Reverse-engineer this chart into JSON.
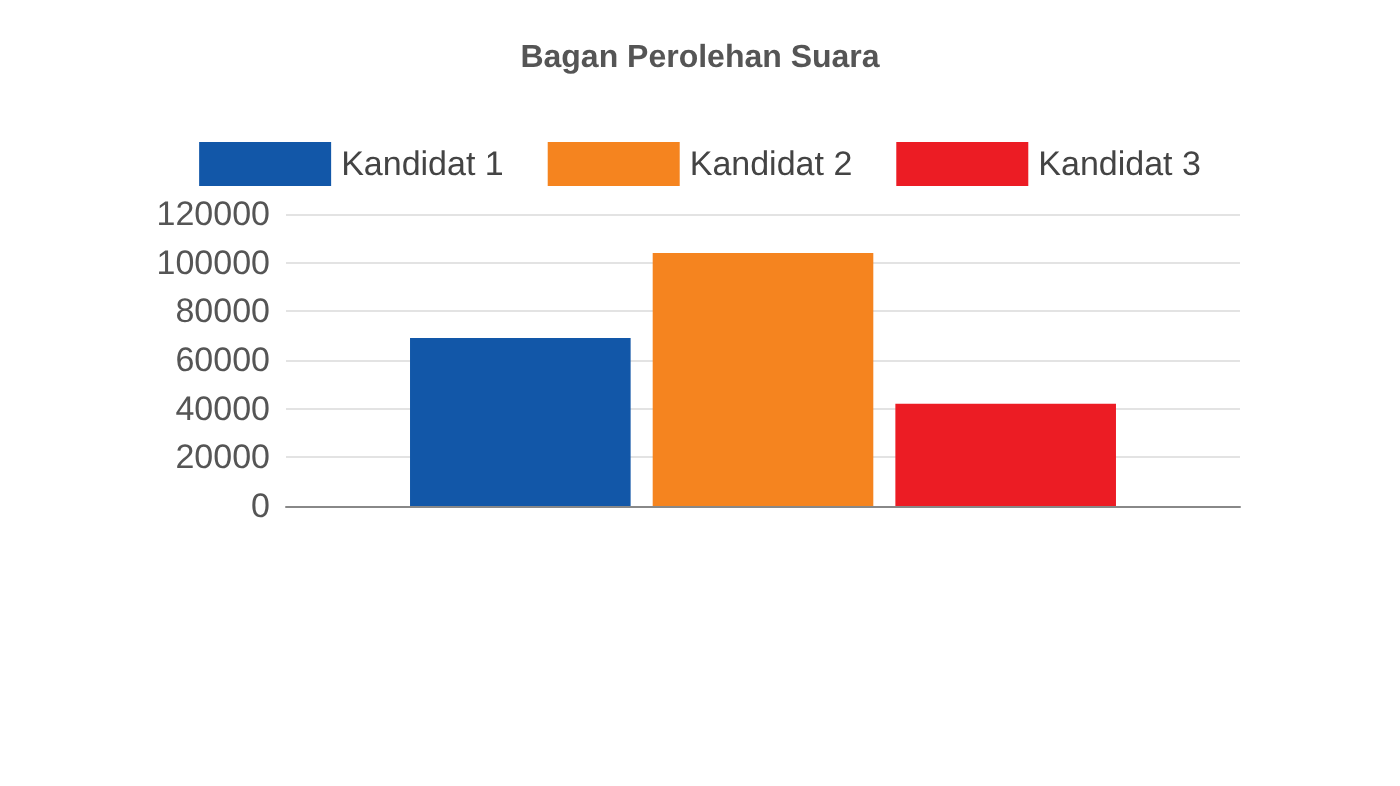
{
  "chart_data": {
    "type": "bar",
    "title": "Bagan Perolehan Suara",
    "categories": [
      null
    ],
    "series": [
      {
        "name": "Kandidat 1",
        "color": "#1257a8",
        "values": [
          69000
        ]
      },
      {
        "name": "Kandidat 2",
        "color": "#f5841f",
        "values": [
          104000
        ]
      },
      {
        "name": "Kandidat 3",
        "color": "#ec1c24",
        "values": [
          42000
        ]
      }
    ],
    "ylim": [
      0,
      120000
    ],
    "yticks": [
      0,
      20000,
      40000,
      60000,
      80000,
      100000,
      120000
    ],
    "grid": "y",
    "legend": "top"
  }
}
